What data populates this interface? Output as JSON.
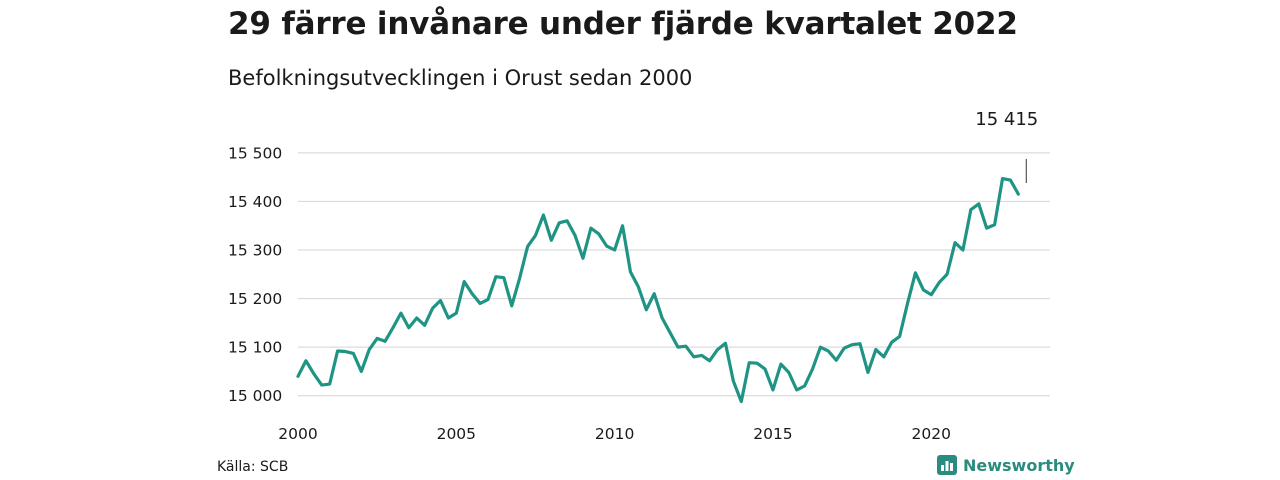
{
  "header": {
    "title": "29 färre invånare under fjärde kvartalet 2022",
    "subtitle": "Befolkningsutvecklingen i Orust sedan 2000"
  },
  "footer": {
    "source": "Källa: SCB",
    "brand": "Newsworthy"
  },
  "colors": {
    "line": "#1f9484",
    "grid": "#dcdcdc",
    "brand": "#2a8c7e"
  },
  "chart_data": {
    "type": "line",
    "title": "29 färre invånare under fjärde kvartalet 2022",
    "subtitle": "Befolkningsutvecklingen i Orust sedan 2000",
    "xlabel": "",
    "ylabel": "",
    "xlim": [
      2000,
      2023.75
    ],
    "ylim": [
      14985,
      15510
    ],
    "grid": true,
    "legend": "none",
    "x_ticks": [
      {
        "value": 2000,
        "label": "2000"
      },
      {
        "value": 2005,
        "label": "2005"
      },
      {
        "value": 2010,
        "label": "2010"
      },
      {
        "value": 2015,
        "label": "2015"
      },
      {
        "value": 2020,
        "label": "2020"
      }
    ],
    "y_ticks": [
      {
        "value": 15000,
        "label": "15 000"
      },
      {
        "value": 15100,
        "label": "15 100"
      },
      {
        "value": 15200,
        "label": "15 200"
      },
      {
        "value": 15300,
        "label": "15 300"
      },
      {
        "value": 15400,
        "label": "15 400"
      },
      {
        "value": 15500,
        "label": "15 500"
      }
    ],
    "annotation": {
      "x": 2023,
      "label": "15 415"
    },
    "series": [
      {
        "x_start": 2000,
        "x_step": 0.25,
        "values": [
          15040,
          15072,
          15045,
          15022,
          15024,
          15092,
          15091,
          15087,
          15050,
          15095,
          15118,
          15112,
          15140,
          15170,
          15140,
          15160,
          15145,
          15180,
          15196,
          15160,
          15170,
          15235,
          15210,
          15190,
          15198,
          15245,
          15243,
          15185,
          15242,
          15307,
          15330,
          15372,
          15320,
          15356,
          15360,
          15330,
          15283,
          15345,
          15333,
          15308,
          15300,
          15350,
          15255,
          15224,
          15177,
          15210,
          15160,
          15130,
          15100,
          15102,
          15080,
          15083,
          15072,
          15095,
          15108,
          15030,
          14988,
          15068,
          15067,
          15055,
          15012,
          15065,
          15048,
          15012,
          15020,
          15055,
          15100,
          15092,
          15073,
          15098,
          15105,
          15107,
          15048,
          15095,
          15080,
          15110,
          15122,
          15190,
          15253,
          15218,
          15208,
          15233,
          15250,
          15315,
          15300,
          15383,
          15395,
          15345,
          15352,
          15447,
          15444,
          15415
        ]
      }
    ]
  }
}
